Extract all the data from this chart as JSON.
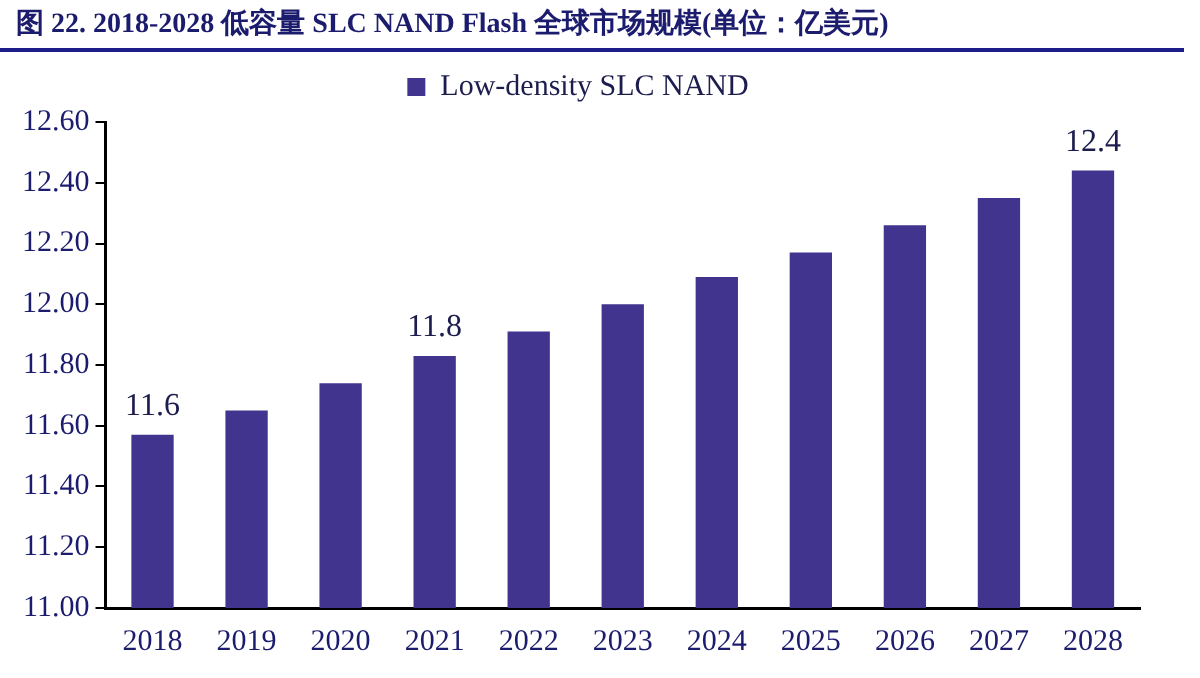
{
  "chart_data": {
    "type": "bar",
    "title": "图 22. 2018-2028 低容量 SLC NAND Flash 全球市场规模(单位：亿美元)",
    "categories": [
      "2018",
      "2019",
      "2020",
      "2021",
      "2022",
      "2023",
      "2024",
      "2025",
      "2026",
      "2027",
      "2028"
    ],
    "series": [
      {
        "name": "Low-density SLC NAND",
        "color": "#41348f",
        "values": [
          11.57,
          11.65,
          11.74,
          11.83,
          11.91,
          12.0,
          12.09,
          12.17,
          12.26,
          12.35,
          12.44
        ],
        "value_labels": [
          "11.6",
          null,
          null,
          "11.8",
          null,
          null,
          null,
          null,
          null,
          null,
          "12.4"
        ]
      }
    ],
    "ylim": [
      11.0,
      12.6
    ],
    "yticks": [
      {
        "value": 11.0,
        "label": "11.00"
      },
      {
        "value": 11.2,
        "label": "11.20"
      },
      {
        "value": 11.4,
        "label": "11.40"
      },
      {
        "value": 11.6,
        "label": "11.60"
      },
      {
        "value": 11.8,
        "label": "11.80"
      },
      {
        "value": 12.0,
        "label": "12.00"
      },
      {
        "value": 12.2,
        "label": "12.20"
      },
      {
        "value": 12.4,
        "label": "12.40"
      },
      {
        "value": 12.6,
        "label": "12.60"
      }
    ],
    "grid": false,
    "legend": "top"
  }
}
